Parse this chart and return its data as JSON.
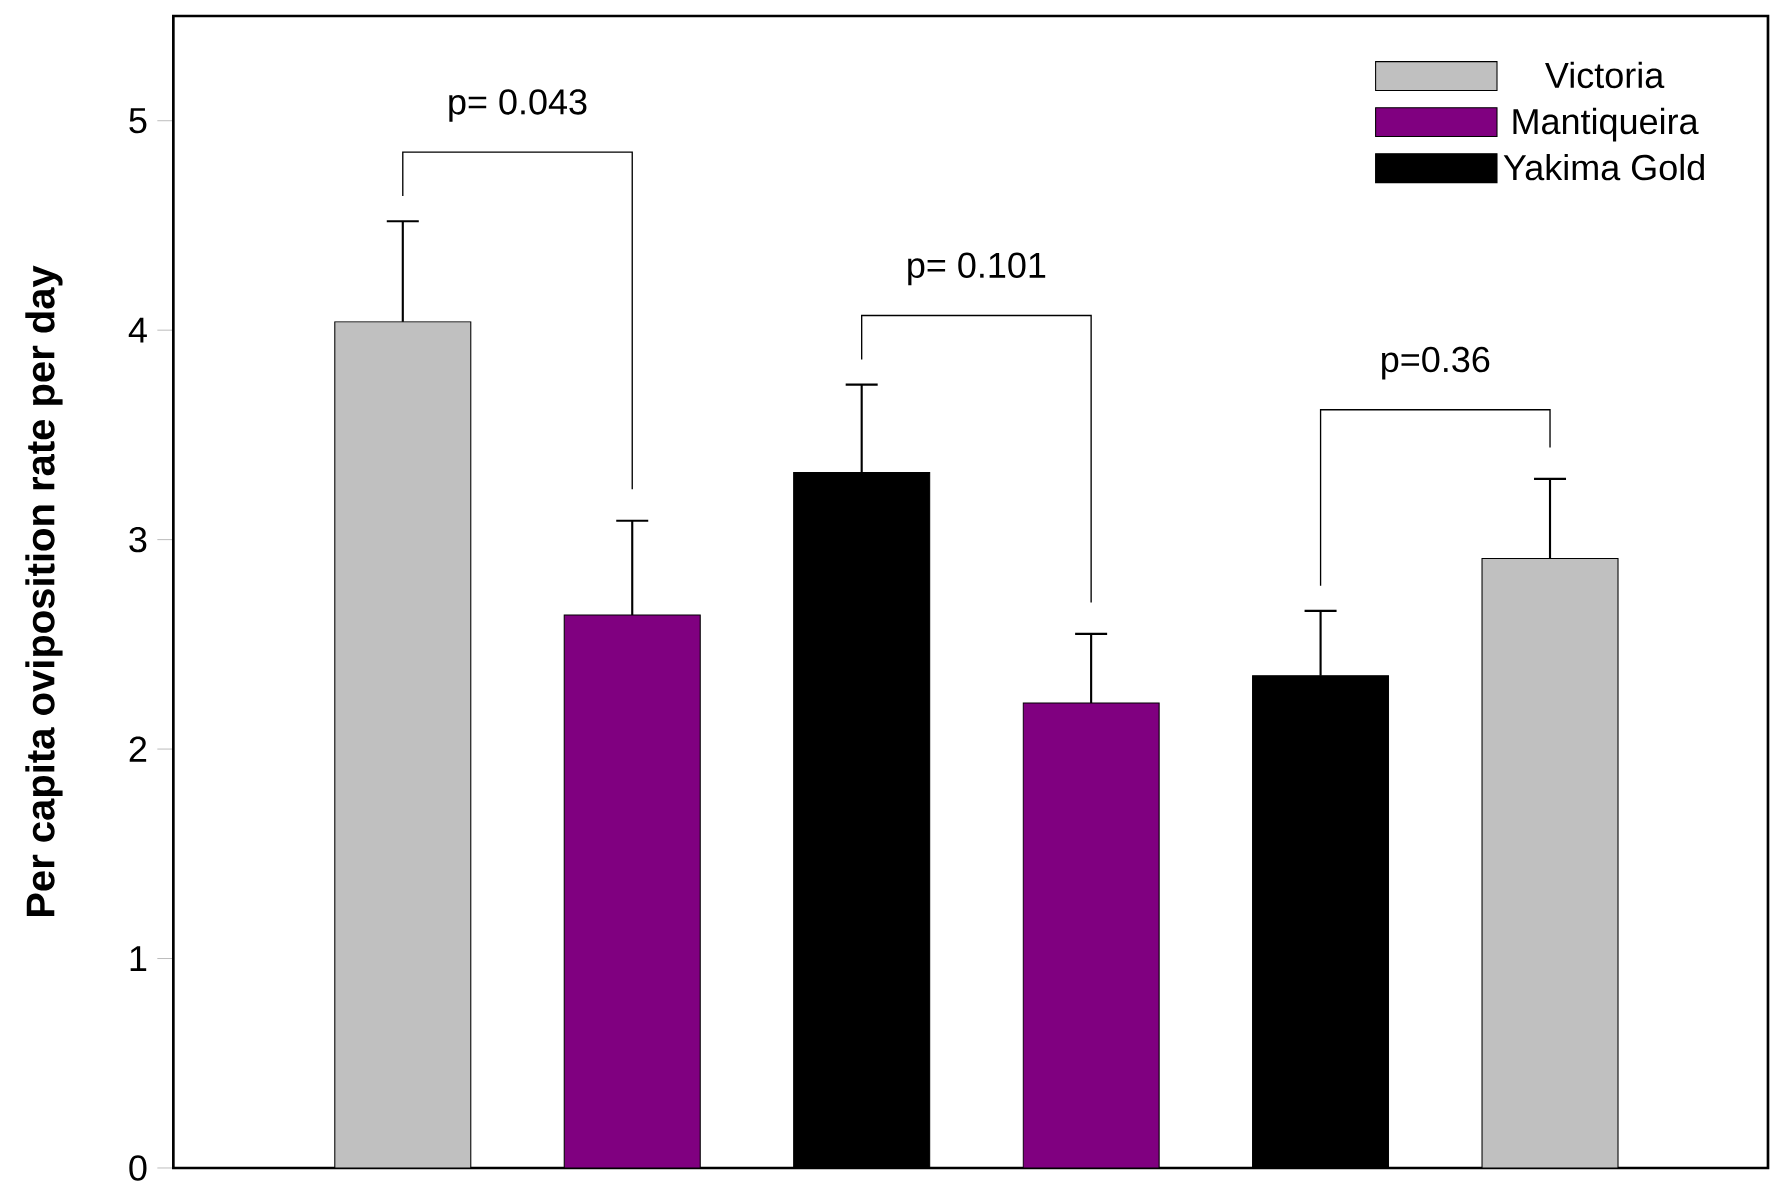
{
  "chart_data": {
    "type": "bar",
    "ylabel": "Per capita oviposition rate per day",
    "categories": [
      null,
      null,
      null,
      null,
      null,
      null
    ],
    "series": [
      {
        "name": "Victoria",
        "color": "#c0c0c0",
        "values": [
          4.04,
          null,
          null,
          null,
          null,
          2.91
        ],
        "errors": [
          0.48,
          null,
          null,
          null,
          null,
          0.38
        ]
      },
      {
        "name": "Mantiqueira",
        "color": "#800080",
        "values": [
          null,
          2.64,
          null,
          2.22,
          null,
          null
        ],
        "errors": [
          null,
          0.45,
          null,
          0.33,
          null,
          null
        ]
      },
      {
        "name": "Yakima Gold",
        "color": "#000000",
        "values": [
          null,
          null,
          3.32,
          null,
          2.35,
          null
        ],
        "errors": [
          null,
          null,
          0.42,
          null,
          0.31,
          null
        ]
      }
    ],
    "ylim": [
      0,
      5.5
    ],
    "yticks": [
      0,
      1,
      2,
      3,
      4,
      5
    ],
    "legend": "top right",
    "stacked": true,
    "annotations": [
      "p= 0.043",
      "p= 0.101",
      "p=0.36"
    ]
  }
}
